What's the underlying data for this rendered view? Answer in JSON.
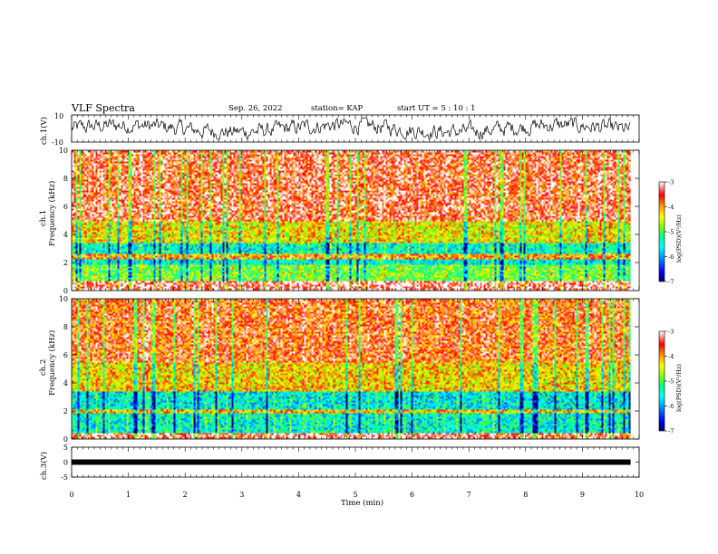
{
  "header": {
    "title": "VLF Spectra",
    "date": "Sep. 26, 2022",
    "station": "station= KAP",
    "start_ut": "start  UT  =   5  : 10 : 1"
  },
  "colors": {
    "spectrum_scale": [
      "#000080",
      "#0000ff",
      "#00a0ff",
      "#00ffff",
      "#00ff80",
      "#80ff00",
      "#ffff00",
      "#ffa000",
      "#ff0000",
      "#ffb0c0",
      "#ffffff"
    ],
    "trace": "#000000"
  },
  "chart_data": [
    {
      "type": "line",
      "panel": "ch1-waveform",
      "ylabel": "ch.1(V)",
      "ylim": [
        -10,
        10
      ],
      "yticks": [
        "10",
        "-10"
      ],
      "description_series": "noisy waveform oscillating roughly between -5 and 5 V",
      "xlim": [
        0,
        10
      ]
    },
    {
      "type": "heatmap",
      "panel": "ch1-spectrogram",
      "ylabel_line1": "ch.1",
      "ylabel_line2": "Frequency (kHz)",
      "ylim": [
        0,
        10
      ],
      "yticks": [
        "10",
        "8",
        "6",
        "4",
        "2",
        "0"
      ],
      "xlim": [
        0,
        9.85
      ],
      "colorbar": {
        "label": "log(PSD)(V²/Hz)",
        "range": [
          -7,
          -3
        ],
        "ticks": [
          "-3",
          "-4",
          "-5",
          "-6",
          "-7"
        ]
      },
      "bands": [
        {
          "from_khz": 0,
          "to_khz": 0.8,
          "level": -3.2
        },
        {
          "from_khz": 0.8,
          "to_khz": 1.9,
          "level": -4.9
        },
        {
          "from_khz": 1.9,
          "to_khz": 2.3,
          "level": -5.6
        },
        {
          "from_khz": 2.3,
          "to_khz": 2.7,
          "level": -4.0
        },
        {
          "from_khz": 2.7,
          "to_khz": 3.5,
          "level": -5.5
        },
        {
          "from_khz": 3.5,
          "to_khz": 5.0,
          "level": -4.4
        },
        {
          "from_khz": 5.0,
          "to_khz": 10.0,
          "level": -3.5
        }
      ]
    },
    {
      "type": "heatmap",
      "panel": "ch2-spectrogram",
      "ylabel_line1": "ch.2",
      "ylabel_line2": "Frequency (kHz)",
      "ylim": [
        0,
        10
      ],
      "yticks": [
        "10",
        "8",
        "6",
        "4",
        "2",
        "0"
      ],
      "xlim": [
        0,
        9.85
      ],
      "colorbar": {
        "label": "log(PSD)(V²/Hz)",
        "range": [
          -7,
          -3
        ],
        "ticks": [
          "-3",
          "-4",
          "-5",
          "-6",
          "-7"
        ]
      },
      "bands": [
        {
          "from_khz": 0,
          "to_khz": 0.5,
          "level": -3.3
        },
        {
          "from_khz": 0.5,
          "to_khz": 1.9,
          "level": -5.5
        },
        {
          "from_khz": 1.9,
          "to_khz": 2.2,
          "level": -4.2
        },
        {
          "from_khz": 2.2,
          "to_khz": 3.4,
          "level": -5.6
        },
        {
          "from_khz": 3.4,
          "to_khz": 5.5,
          "level": -4.3
        },
        {
          "from_khz": 5.5,
          "to_khz": 10.0,
          "level": -3.7
        }
      ]
    },
    {
      "type": "line",
      "panel": "ch3-waveform",
      "ylabel": "ch.3(V)",
      "ylim": [
        -5,
        5
      ],
      "yticks": [
        "5",
        "0",
        "-5"
      ],
      "constant_value": 0,
      "xlim": [
        0,
        9.85
      ]
    }
  ],
  "xaxis": {
    "label": "Time  (min)",
    "ticks": [
      "0",
      "1",
      "2",
      "3",
      "4",
      "5",
      "6",
      "7",
      "8",
      "9",
      "10"
    ],
    "range": [
      0,
      10
    ]
  }
}
